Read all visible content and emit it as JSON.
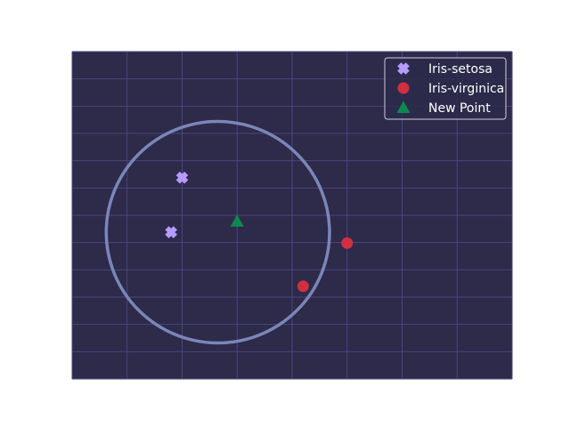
{
  "chart_data": {
    "type": "scatter",
    "title": "",
    "xlabel": "",
    "ylabel": "",
    "xlim": [
      0,
      8
    ],
    "ylim": [
      0,
      6
    ],
    "grid": true,
    "background_color": "#2d2a4a",
    "grid_color": "#4a4580",
    "legend_placement": "top-right",
    "series": [
      {
        "name": "Iris-setosa",
        "marker": "x-cross",
        "color": "#b49cff",
        "points": [
          {
            "x": 2.0,
            "y": 3.69
          },
          {
            "x": 1.8,
            "y": 2.69
          }
        ]
      },
      {
        "name": "Iris-virginica",
        "marker": "circle",
        "color": "#d1303e",
        "points": [
          {
            "x": 5.0,
            "y": 2.49
          },
          {
            "x": 4.2,
            "y": 1.7
          }
        ]
      },
      {
        "name": "New Point",
        "marker": "triangle",
        "color": "#0c8a4e",
        "points": [
          {
            "x": 3.0,
            "y": 2.89
          }
        ]
      }
    ],
    "neighborhood_circle": {
      "center_x": 2.65,
      "center_y": 2.69,
      "radius": 2.03,
      "color": "#7b86b8"
    }
  }
}
